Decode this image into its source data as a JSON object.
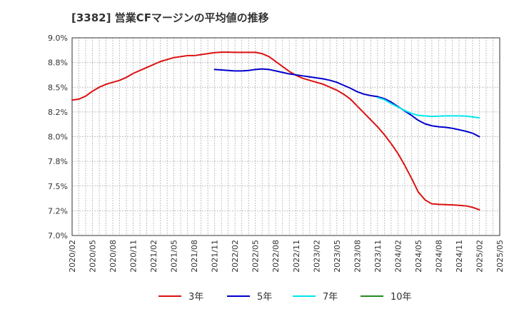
{
  "chart_data": {
    "type": "line",
    "title": "[3382]  営業CFマージンの平均値の推移",
    "ylim": [
      7.0,
      9.0
    ],
    "yticks": [
      {
        "v": 7.0,
        "label": "7.0%"
      },
      {
        "v": 7.25,
        "label": "7.2%"
      },
      {
        "v": 7.5,
        "label": "7.5%"
      },
      {
        "v": 7.75,
        "label": "7.8%"
      },
      {
        "v": 8.0,
        "label": "8.0%"
      },
      {
        "v": 8.25,
        "label": "8.2%"
      },
      {
        "v": 8.5,
        "label": "8.5%"
      },
      {
        "v": 8.75,
        "label": "8.8%"
      },
      {
        "v": 9.0,
        "label": "9.0%"
      }
    ],
    "xticks": [
      "2020/02",
      "2020/05",
      "2020/08",
      "2020/11",
      "2021/02",
      "2021/05",
      "2021/08",
      "2021/11",
      "2022/02",
      "2022/05",
      "2022/08",
      "2022/11",
      "2023/02",
      "2023/05",
      "2023/08",
      "2023/11",
      "2024/02",
      "2024/05",
      "2024/08",
      "2024/11",
      "2025/02",
      "2025/05"
    ],
    "grid": true,
    "legend_position": "bottom",
    "series": [
      {
        "name": "3年",
        "color": "#dd1111",
        "points": [
          [
            "2020/02",
            8.37
          ],
          [
            "2020/03",
            8.38
          ],
          [
            "2020/04",
            8.41
          ],
          [
            "2020/05",
            8.46
          ],
          [
            "2020/06",
            8.5
          ],
          [
            "2020/07",
            8.53
          ],
          [
            "2020/08",
            8.55
          ],
          [
            "2020/09",
            8.57
          ],
          [
            "2020/10",
            8.6
          ],
          [
            "2020/11",
            8.64
          ],
          [
            "2020/12",
            8.67
          ],
          [
            "2021/01",
            8.7
          ],
          [
            "2021/02",
            8.73
          ],
          [
            "2021/03",
            8.76
          ],
          [
            "2021/04",
            8.78
          ],
          [
            "2021/05",
            8.8
          ],
          [
            "2021/06",
            8.81
          ],
          [
            "2021/07",
            8.82
          ],
          [
            "2021/08",
            8.82
          ],
          [
            "2021/09",
            8.83
          ],
          [
            "2021/10",
            8.84
          ],
          [
            "2021/11",
            8.85
          ],
          [
            "2021/12",
            8.855
          ],
          [
            "2022/01",
            8.855
          ],
          [
            "2022/02",
            8.853
          ],
          [
            "2022/03",
            8.853
          ],
          [
            "2022/04",
            8.853
          ],
          [
            "2022/05",
            8.853
          ],
          [
            "2022/06",
            8.84
          ],
          [
            "2022/07",
            8.81
          ],
          [
            "2022/08",
            8.76
          ],
          [
            "2022/09",
            8.71
          ],
          [
            "2022/10",
            8.66
          ],
          [
            "2022/11",
            8.62
          ],
          [
            "2022/12",
            8.59
          ],
          [
            "2023/01",
            8.57
          ],
          [
            "2023/02",
            8.55
          ],
          [
            "2023/03",
            8.53
          ],
          [
            "2023/04",
            8.5
          ],
          [
            "2023/05",
            8.47
          ],
          [
            "2023/06",
            8.43
          ],
          [
            "2023/07",
            8.38
          ],
          [
            "2023/08",
            8.31
          ],
          [
            "2023/09",
            8.24
          ],
          [
            "2023/10",
            8.17
          ],
          [
            "2023/11",
            8.1
          ],
          [
            "2023/12",
            8.02
          ],
          [
            "2024/01",
            7.93
          ],
          [
            "2024/02",
            7.83
          ],
          [
            "2024/03",
            7.71
          ],
          [
            "2024/04",
            7.58
          ],
          [
            "2024/05",
            7.44
          ],
          [
            "2024/06",
            7.36
          ],
          [
            "2024/07",
            7.32
          ],
          [
            "2024/08",
            7.315
          ],
          [
            "2024/09",
            7.312
          ],
          [
            "2024/10",
            7.31
          ],
          [
            "2024/11",
            7.305
          ],
          [
            "2024/12",
            7.3
          ],
          [
            "2025/01",
            7.285
          ],
          [
            "2025/02",
            7.26
          ]
        ]
      },
      {
        "name": "5年",
        "color": "#0000cc",
        "points": [
          [
            "2021/11",
            8.68
          ],
          [
            "2021/12",
            8.675
          ],
          [
            "2022/01",
            8.67
          ],
          [
            "2022/02",
            8.665
          ],
          [
            "2022/03",
            8.665
          ],
          [
            "2022/04",
            8.67
          ],
          [
            "2022/05",
            8.68
          ],
          [
            "2022/06",
            8.685
          ],
          [
            "2022/07",
            8.68
          ],
          [
            "2022/08",
            8.665
          ],
          [
            "2022/09",
            8.65
          ],
          [
            "2022/10",
            8.635
          ],
          [
            "2022/11",
            8.625
          ],
          [
            "2022/12",
            8.615
          ],
          [
            "2023/01",
            8.605
          ],
          [
            "2023/02",
            8.595
          ],
          [
            "2023/03",
            8.585
          ],
          [
            "2023/04",
            8.57
          ],
          [
            "2023/05",
            8.55
          ],
          [
            "2023/06",
            8.52
          ],
          [
            "2023/07",
            8.49
          ],
          [
            "2023/08",
            8.455
          ],
          [
            "2023/09",
            8.43
          ],
          [
            "2023/10",
            8.415
          ],
          [
            "2023/11",
            8.405
          ],
          [
            "2023/12",
            8.385
          ],
          [
            "2024/01",
            8.35
          ],
          [
            "2024/02",
            8.305
          ],
          [
            "2024/03",
            8.26
          ],
          [
            "2024/04",
            8.215
          ],
          [
            "2024/05",
            8.165
          ],
          [
            "2024/06",
            8.13
          ],
          [
            "2024/07",
            8.11
          ],
          [
            "2024/08",
            8.1
          ],
          [
            "2024/09",
            8.095
          ],
          [
            "2024/10",
            8.085
          ],
          [
            "2024/11",
            8.07
          ],
          [
            "2024/12",
            8.055
          ],
          [
            "2025/01",
            8.035
          ],
          [
            "2025/02",
            8.0
          ]
        ]
      },
      {
        "name": "7年",
        "color": "#00e5ee",
        "points": [
          [
            "2023/11",
            8.395
          ],
          [
            "2023/12",
            8.375
          ],
          [
            "2024/01",
            8.335
          ],
          [
            "2024/02",
            8.3
          ],
          [
            "2024/03",
            8.265
          ],
          [
            "2024/04",
            8.235
          ],
          [
            "2024/05",
            8.215
          ],
          [
            "2024/06",
            8.21
          ],
          [
            "2024/07",
            8.205
          ],
          [
            "2024/08",
            8.208
          ],
          [
            "2024/09",
            8.21
          ],
          [
            "2024/10",
            8.21
          ],
          [
            "2024/11",
            8.21
          ],
          [
            "2024/12",
            8.208
          ],
          [
            "2025/01",
            8.2
          ],
          [
            "2025/02",
            8.19
          ]
        ]
      },
      {
        "name": "10年",
        "color": "#228b22",
        "points": []
      }
    ]
  }
}
